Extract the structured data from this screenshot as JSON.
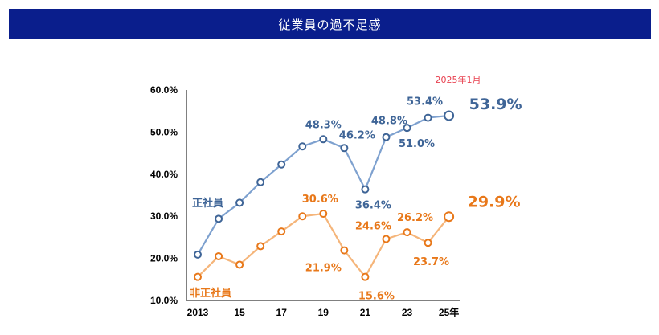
{
  "header": {
    "title": "従業員の過不足感"
  },
  "chart_data": {
    "type": "line",
    "title": "従業員の過不足感",
    "annotation": "2025年1月",
    "ylim": [
      10,
      60
    ],
    "y_ticks": [
      "60.0%",
      "50.0%",
      "40.0%",
      "30.0%",
      "20.0%",
      "10.0%"
    ],
    "x_tick_labels": [
      "2013",
      "15",
      "17",
      "19",
      "21",
      "23",
      "25年"
    ],
    "x": [
      2013,
      2014,
      2015,
      2016,
      2017,
      2018,
      2019,
      2020,
      2021,
      2022,
      2023,
      2024,
      2025
    ],
    "colors": {
      "regular": "#7ea1cf",
      "regular_text": "#3f6597",
      "nonregular": "#f5b57a",
      "nonregular_text": "#e8781a"
    },
    "series": [
      {
        "name": "正社員",
        "values": [
          20.9,
          29.4,
          33.2,
          38.1,
          42.3,
          46.6,
          48.3,
          46.2,
          36.4,
          48.8,
          51.0,
          53.4,
          53.9
        ],
        "labels": [
          "",
          "",
          "",
          "",
          "",
          "",
          "48.3%",
          "46.2%",
          "36.4%",
          "48.8%",
          "51.0%",
          "53.4%",
          "53.9%"
        ]
      },
      {
        "name": "非正社員",
        "values": [
          15.6,
          20.5,
          18.5,
          22.9,
          26.4,
          30.0,
          30.6,
          21.9,
          15.6,
          24.6,
          26.2,
          23.7,
          29.9
        ],
        "labels": [
          "",
          "",
          "",
          "",
          "",
          "",
          "30.6%",
          "21.9%",
          "15.6%",
          "24.6%",
          "26.2%",
          "23.7%",
          "29.9%"
        ]
      }
    ]
  }
}
